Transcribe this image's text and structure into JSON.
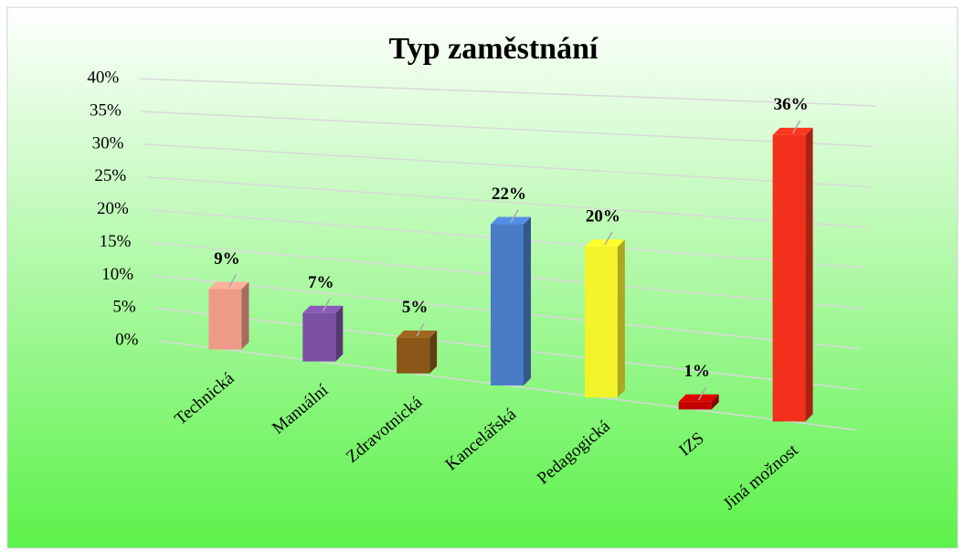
{
  "chart_data": {
    "type": "bar3d",
    "title": "Typ zaměstnání",
    "categories": [
      "Technická",
      "Manuální",
      "Zdravotnická",
      "Kancelářská",
      "Pedagogická",
      "IZS",
      "Jiná možnost"
    ],
    "values": [
      9,
      7,
      5,
      22,
      20,
      1,
      36
    ],
    "value_labels": [
      "9%",
      "7%",
      "5%",
      "22%",
      "20%",
      "1%",
      "36%"
    ],
    "colors": [
      "#ee9a88",
      "#7b4fa3",
      "#8a5719",
      "#4a7cc6",
      "#f4f228",
      "#c40000",
      "#f2301c"
    ],
    "ylim": [
      0,
      40
    ],
    "yticks": [
      {
        "value": 0,
        "label": "0%"
      },
      {
        "value": 5,
        "label": "5%"
      },
      {
        "value": 10,
        "label": "10%"
      },
      {
        "value": 15,
        "label": "15%"
      },
      {
        "value": 20,
        "label": "20%"
      },
      {
        "value": 25,
        "label": "25%"
      },
      {
        "value": 30,
        "label": "30%"
      },
      {
        "value": 35,
        "label": "35%"
      },
      {
        "value": 40,
        "label": "40%"
      }
    ],
    "grid": true
  }
}
